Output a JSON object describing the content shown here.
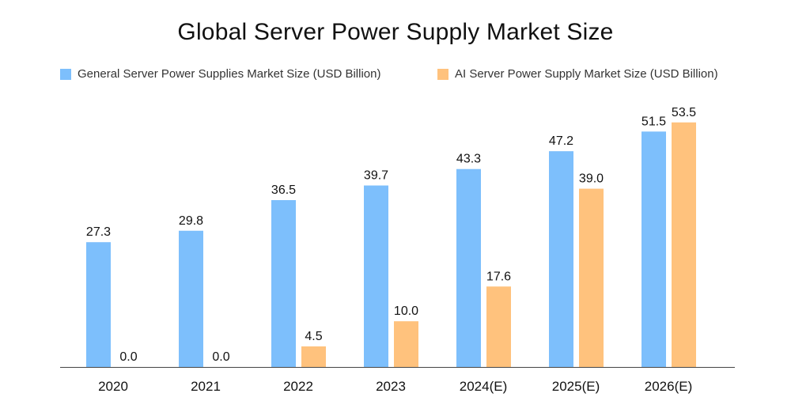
{
  "chart_data": {
    "type": "bar",
    "title": "Global Server Power Supply Market Size",
    "categories": [
      "2020",
      "2021",
      "2022",
      "2023",
      "2024(E)",
      "2025(E)",
      "2026(E)"
    ],
    "series": [
      {
        "name": "General Server Power Supplies Market Size (USD Billion)",
        "color": "#7DBFFC",
        "values": [
          27.3,
          29.8,
          36.5,
          39.7,
          43.3,
          47.2,
          51.5
        ],
        "labels": [
          "27.3",
          "29.8",
          "36.5",
          "39.7",
          "43.3",
          "47.2",
          "51.5"
        ]
      },
      {
        "name": "AI Server Power Supply Market Size (USD Billion)",
        "color": "#FFC27D",
        "values": [
          0.0,
          0.0,
          4.5,
          10.0,
          17.6,
          39.0,
          53.5
        ],
        "labels": [
          "0.0",
          "0.0",
          "4.5",
          "10.0",
          "17.6",
          "39.0",
          "53.5"
        ]
      }
    ],
    "xlabel": "",
    "ylabel": "",
    "ylim": [
      0,
      60
    ],
    "grid": false,
    "legend": "top"
  }
}
